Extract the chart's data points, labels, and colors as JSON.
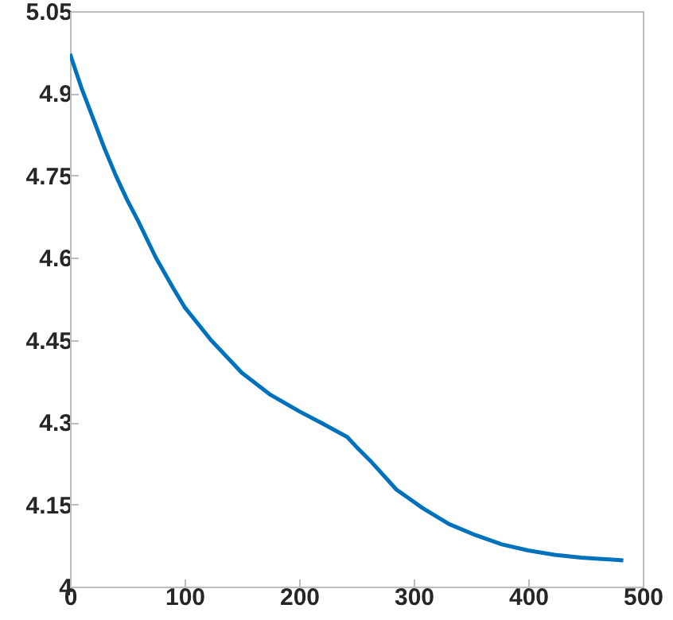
{
  "chart_data": {
    "type": "line",
    "x": [
      0,
      10,
      20,
      30,
      40,
      50,
      60,
      75,
      90,
      100,
      123,
      150,
      175,
      200,
      220,
      242,
      250,
      262,
      285,
      308,
      331,
      354,
      377,
      400,
      423,
      446,
      483
    ],
    "series": [
      {
        "color": "#0072bd",
        "values": [
          4.972,
          4.91,
          4.855,
          4.8,
          4.75,
          4.705,
          4.665,
          4.6,
          4.545,
          4.51,
          4.45,
          4.39,
          4.35,
          4.32,
          4.298,
          4.273,
          4.255,
          4.23,
          4.177,
          4.143,
          4.114,
          4.094,
          4.077,
          4.066,
          4.058,
          4.053,
          4.048
        ]
      }
    ],
    "xlim": [
      0,
      500
    ],
    "xticks": [
      0,
      100,
      200,
      300,
      400,
      500
    ],
    "ylim": [
      4,
      5.05
    ],
    "yticks": [
      4,
      4.15,
      4.3,
      4.45,
      4.6,
      4.75,
      4.9,
      5.05
    ],
    "grid": false,
    "line_style": "solid",
    "marker": "none"
  }
}
